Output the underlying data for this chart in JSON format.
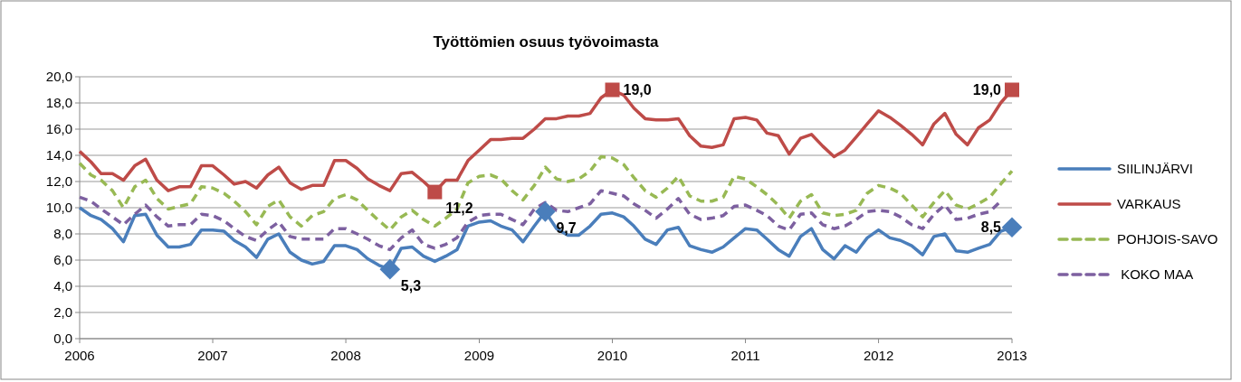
{
  "chart_data": {
    "type": "line",
    "title": "Työttömien osuus työvoimasta",
    "x": [
      "2006-01",
      "2006-02",
      "2006-03",
      "2006-04",
      "2006-05",
      "2006-06",
      "2006-07",
      "2006-08",
      "2006-09",
      "2006-10",
      "2006-11",
      "2006-12",
      "2007-01",
      "2007-02",
      "2007-03",
      "2007-04",
      "2007-05",
      "2007-06",
      "2007-07",
      "2007-08",
      "2007-09",
      "2007-10",
      "2007-11",
      "2007-12",
      "2008-01",
      "2008-02",
      "2008-03",
      "2008-04",
      "2008-05",
      "2008-06",
      "2008-07",
      "2008-08",
      "2008-09",
      "2008-10",
      "2008-11",
      "2008-12",
      "2009-01",
      "2009-02",
      "2009-03",
      "2009-04",
      "2009-05",
      "2009-06",
      "2009-07",
      "2009-08",
      "2009-09",
      "2009-10",
      "2009-11",
      "2009-12",
      "2010-01",
      "2010-02",
      "2010-03",
      "2010-04",
      "2010-05",
      "2010-06",
      "2010-07",
      "2010-08",
      "2010-09",
      "2010-10",
      "2010-11",
      "2010-12",
      "2011-01",
      "2011-02",
      "2011-03",
      "2011-04",
      "2011-05",
      "2011-06",
      "2011-07",
      "2011-08",
      "2011-09",
      "2011-10",
      "2011-11",
      "2011-12",
      "2012-01",
      "2012-02",
      "2012-03",
      "2012-04",
      "2012-05",
      "2012-06",
      "2012-07",
      "2012-08",
      "2012-09",
      "2012-10",
      "2012-11",
      "2012-12",
      "2013-01"
    ],
    "series": [
      {
        "name": "SIILINJÄRVI",
        "color": "#4a7ebb",
        "line_style": "solid",
        "values": [
          10.0,
          9.4,
          9.1,
          8.4,
          7.4,
          9.4,
          9.5,
          7.9,
          7.0,
          7.0,
          7.2,
          8.3,
          8.3,
          8.2,
          7.5,
          7.0,
          6.2,
          7.6,
          8.0,
          6.6,
          6.0,
          5.7,
          5.9,
          7.1,
          7.1,
          6.8,
          6.1,
          5.6,
          5.3,
          6.9,
          7.0,
          6.3,
          5.9,
          6.3,
          6.8,
          8.6,
          8.9,
          9.0,
          8.6,
          8.3,
          7.4,
          8.6,
          9.7,
          8.4,
          7.9,
          7.9,
          8.6,
          9.5,
          9.6,
          9.3,
          8.6,
          7.6,
          7.2,
          8.3,
          8.5,
          7.1,
          6.8,
          6.6,
          7.0,
          7.7,
          8.4,
          8.3,
          7.6,
          6.8,
          6.3,
          7.8,
          8.4,
          6.8,
          6.1,
          7.1,
          6.6,
          7.7,
          8.3,
          7.7,
          7.5,
          7.1,
          6.4,
          7.8,
          8.0,
          6.7,
          6.6,
          6.9,
          7.2,
          8.2,
          8.5
        ]
      },
      {
        "name": "VARKAUS",
        "color": "#be4b48",
        "line_style": "solid",
        "values": [
          14.3,
          13.5,
          12.6,
          12.6,
          12.1,
          13.2,
          13.7,
          12.1,
          11.3,
          11.6,
          11.6,
          13.2,
          13.2,
          12.5,
          11.8,
          12.0,
          11.5,
          12.5,
          13.1,
          11.9,
          11.4,
          11.7,
          11.7,
          13.6,
          13.6,
          13.0,
          12.2,
          11.7,
          11.3,
          12.6,
          12.7,
          12.0,
          11.2,
          12.1,
          12.1,
          13.6,
          14.4,
          15.2,
          15.2,
          15.3,
          15.3,
          16.0,
          16.8,
          16.8,
          17.0,
          17.0,
          17.2,
          18.4,
          19.0,
          18.6,
          17.6,
          16.8,
          16.7,
          16.7,
          16.8,
          15.5,
          14.7,
          14.6,
          14.8,
          16.8,
          16.9,
          16.7,
          15.7,
          15.5,
          14.1,
          15.3,
          15.6,
          14.7,
          13.9,
          14.4,
          15.4,
          16.4,
          17.4,
          16.9,
          16.3,
          15.6,
          14.8,
          16.4,
          17.2,
          15.6,
          14.8,
          16.1,
          16.7,
          18.0,
          19.0
        ]
      },
      {
        "name": "POHJOIS-SAVO",
        "color": "#98b954",
        "line_style": "dashed",
        "values": [
          13.4,
          12.5,
          12.1,
          11.3,
          10.0,
          11.6,
          12.1,
          10.7,
          9.9,
          10.1,
          10.3,
          11.6,
          11.5,
          11.1,
          10.5,
          9.7,
          8.7,
          10.1,
          10.6,
          9.3,
          8.6,
          9.4,
          9.7,
          10.7,
          11.0,
          10.6,
          9.8,
          9.0,
          8.3,
          9.3,
          9.8,
          9.1,
          8.6,
          9.2,
          9.9,
          11.9,
          12.4,
          12.5,
          12.2,
          11.3,
          10.6,
          11.7,
          13.1,
          12.2,
          12.0,
          12.2,
          12.8,
          13.9,
          13.8,
          13.3,
          12.3,
          11.3,
          10.8,
          11.5,
          12.4,
          10.9,
          10.5,
          10.5,
          10.8,
          12.4,
          12.2,
          11.6,
          11.0,
          10.2,
          9.2,
          10.5,
          11.0,
          9.6,
          9.4,
          9.5,
          9.8,
          11.1,
          11.7,
          11.5,
          11.1,
          10.2,
          9.3,
          10.4,
          11.3,
          10.2,
          9.9,
          10.3,
          10.8,
          11.8,
          12.8
        ]
      },
      {
        "name": " KOKO MAA",
        "color": "#7d60a0",
        "line_style": "dashed",
        "values": [
          10.8,
          10.5,
          9.9,
          9.3,
          8.7,
          9.5,
          10.2,
          9.3,
          8.6,
          8.7,
          8.7,
          9.5,
          9.4,
          9.0,
          8.4,
          7.8,
          7.5,
          8.3,
          8.9,
          7.8,
          7.6,
          7.6,
          7.6,
          8.4,
          8.4,
          8.0,
          7.6,
          7.1,
          6.8,
          7.7,
          8.3,
          7.2,
          6.9,
          7.2,
          7.7,
          8.9,
          9.4,
          9.5,
          9.5,
          9.1,
          8.7,
          9.9,
          10.4,
          9.8,
          9.7,
          10.0,
          10.3,
          11.3,
          11.1,
          10.9,
          10.3,
          9.8,
          9.2,
          9.9,
          10.7,
          9.5,
          9.1,
          9.2,
          9.4,
          10.1,
          10.2,
          9.8,
          9.4,
          8.6,
          8.3,
          9.5,
          9.6,
          8.7,
          8.4,
          8.6,
          9.1,
          9.7,
          9.8,
          9.7,
          9.3,
          8.7,
          8.4,
          9.5,
          10.2,
          9.1,
          9.2,
          9.5,
          9.7,
          10.5,
          null
        ]
      }
    ],
    "xlim": [
      "2006-01",
      "2013-01"
    ],
    "xticks": [
      "2006",
      "2007",
      "2008",
      "2009",
      "2010",
      "2011",
      "2012",
      "2013"
    ],
    "ylim": [
      0,
      20
    ],
    "yticks": [
      {
        "value": 0,
        "label": "0,0"
      },
      {
        "value": 2,
        "label": "2,0"
      },
      {
        "value": 4,
        "label": "4,0"
      },
      {
        "value": 6,
        "label": "6,0"
      },
      {
        "value": 8,
        "label": "8,0"
      },
      {
        "value": 10,
        "label": "10,0"
      },
      {
        "value": 12,
        "label": "12,0"
      },
      {
        "value": 14,
        "label": "14,0"
      },
      {
        "value": 16,
        "label": "16,0"
      },
      {
        "value": 18,
        "label": "18,0"
      },
      {
        "value": 20,
        "label": "20,0"
      }
    ],
    "grid": "y",
    "legend": "right",
    "marker": "none",
    "annotations": [
      {
        "text": "5,3",
        "x": "2008-05",
        "y": 5.3
      },
      {
        "text": "11,2",
        "x": "2008-09",
        "y": 11.2
      },
      {
        "text": "9,7",
        "x": "2009-07",
        "y": 9.7
      },
      {
        "text": "19,0",
        "x": "2010-01",
        "y": 19.0
      },
      {
        "text": "19,0",
        "x": "2013-01",
        "y": 19.0
      },
      {
        "text": "8,5",
        "x": "2013-01",
        "y": 8.5
      }
    ]
  }
}
